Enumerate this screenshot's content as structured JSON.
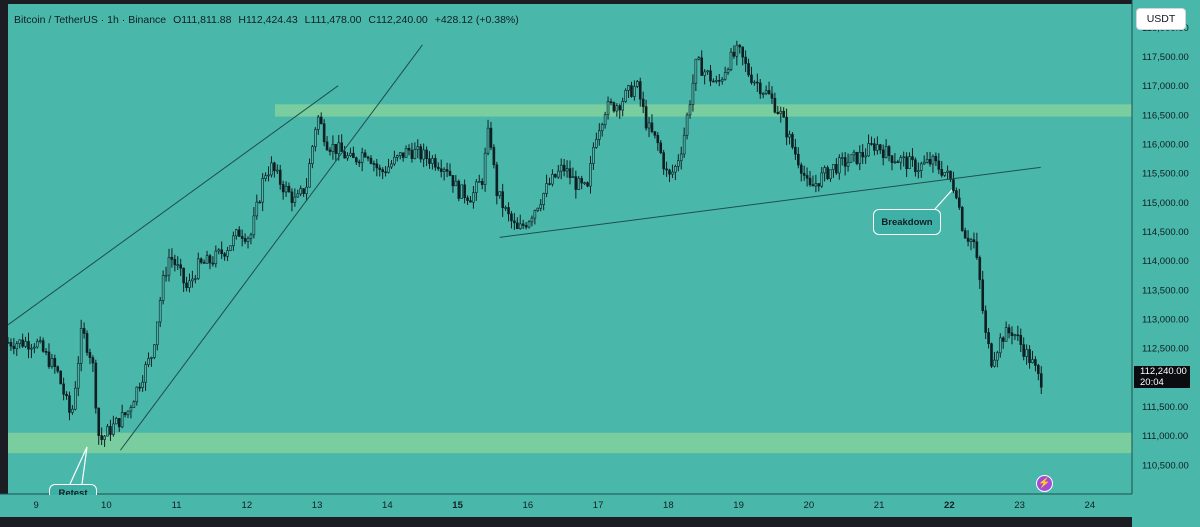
{
  "legend": {
    "symbol": "Bitcoin / TetherUS · 1h · Binance",
    "open": "O111,811.88",
    "high": "H112,424.43",
    "low": "L111,478.00",
    "close": "C112,240.00",
    "change": "+428.12 (+0.38%)"
  },
  "currency_button": "USDT",
  "last_price": "112,240.00",
  "countdown": "20:04",
  "annotations": {
    "breakdown": "Breakdown",
    "retest": "Retest"
  },
  "icons": {
    "lightning": "lightning-icon"
  },
  "colors": {
    "background": "#4ab7ab",
    "zone": "#7fcf9c",
    "candle": "#0d1f22",
    "frame": "#1b1d22"
  },
  "chart_data": {
    "type": "candlestick",
    "title": "",
    "ylim": [
      110000,
      118400
    ],
    "y_ticks": [
      "110,500.00",
      "111,000.00",
      "111,500.00",
      "112,000.00",
      "112,500.00",
      "113,000.00",
      "113,500.00",
      "114,000.00",
      "114,500.00",
      "115,000.00",
      "115,500.00",
      "116,000.00",
      "116,500.00",
      "117,000.00",
      "117,500.00",
      "118,000.00"
    ],
    "x_ticks": [
      "9",
      "10",
      "11",
      "12",
      "13",
      "14",
      "15",
      "16",
      "17",
      "18",
      "19",
      "20",
      "21",
      "22",
      "23",
      "24"
    ],
    "x_range_days": [
      8.6,
      24.6
    ],
    "grid": false,
    "zones": [
      {
        "name": "resistance",
        "from": 116470,
        "to": 116680,
        "x_start": 12.4,
        "x_end": 24.6
      },
      {
        "name": "support",
        "from": 110700,
        "to": 111050,
        "x_start": 8.6,
        "x_end": 24.6
      }
    ],
    "trendlines": [
      {
        "from": [
          8.6,
          112900
        ],
        "to": [
          13.3,
          117000
        ]
      },
      {
        "from": [
          10.2,
          110750
        ],
        "to": [
          14.5,
          117700
        ]
      },
      {
        "from": [
          15.6,
          114400
        ],
        "to": [
          23.3,
          115600
        ]
      }
    ],
    "price_path": [
      [
        9.0,
        112600
      ],
      [
        9.3,
        112100
      ],
      [
        9.5,
        111300
      ],
      [
        9.65,
        112800
      ],
      [
        9.8,
        112300
      ],
      [
        9.9,
        110900
      ],
      [
        10.05,
        111100
      ],
      [
        10.3,
        111400
      ],
      [
        10.5,
        112000
      ],
      [
        10.65,
        112400
      ],
      [
        10.8,
        113600
      ],
      [
        10.9,
        114100
      ],
      [
        11.0,
        113900
      ],
      [
        11.15,
        113500
      ],
      [
        11.3,
        113900
      ],
      [
        11.5,
        114000
      ],
      [
        11.7,
        114200
      ],
      [
        11.9,
        114500
      ],
      [
        12.05,
        114400
      ],
      [
        12.2,
        115200
      ],
      [
        12.25,
        115500
      ],
      [
        12.35,
        115600
      ],
      [
        12.5,
        115300
      ],
      [
        12.7,
        115000
      ],
      [
        12.85,
        115300
      ],
      [
        12.95,
        116100
      ],
      [
        13.0,
        116500
      ],
      [
        13.15,
        116000
      ],
      [
        13.3,
        115900
      ],
      [
        13.5,
        115700
      ],
      [
        13.7,
        115900
      ],
      [
        13.9,
        115500
      ],
      [
        14.1,
        115700
      ],
      [
        14.3,
        115900
      ],
      [
        14.5,
        115800
      ],
      [
        14.7,
        115700
      ],
      [
        14.85,
        115600
      ],
      [
        15.0,
        115200
      ],
      [
        15.2,
        115100
      ],
      [
        15.35,
        115400
      ],
      [
        15.45,
        116300
      ],
      [
        15.55,
        115200
      ],
      [
        15.7,
        114800
      ],
      [
        15.85,
        114500
      ],
      [
        16.0,
        114700
      ],
      [
        16.15,
        115000
      ],
      [
        16.3,
        115300
      ],
      [
        16.5,
        115600
      ],
      [
        16.7,
        115300
      ],
      [
        16.85,
        115200
      ],
      [
        16.95,
        116100
      ],
      [
        17.1,
        116600
      ],
      [
        17.3,
        116700
      ],
      [
        17.45,
        116900
      ],
      [
        17.55,
        117000
      ],
      [
        17.7,
        116300
      ],
      [
        17.85,
        116000
      ],
      [
        18.0,
        115400
      ],
      [
        18.1,
        115600
      ],
      [
        18.2,
        116000
      ],
      [
        18.3,
        116700
      ],
      [
        18.4,
        117400
      ],
      [
        18.55,
        117200
      ],
      [
        18.7,
        117000
      ],
      [
        18.85,
        117400
      ],
      [
        19.0,
        117600
      ],
      [
        19.15,
        117200
      ],
      [
        19.3,
        117000
      ],
      [
        19.45,
        116800
      ],
      [
        19.6,
        116500
      ],
      [
        19.75,
        116000
      ],
      [
        19.9,
        115600
      ],
      [
        20.0,
        115200
      ],
      [
        20.15,
        115400
      ],
      [
        20.35,
        115600
      ],
      [
        20.55,
        115700
      ],
      [
        20.75,
        115800
      ],
      [
        20.95,
        116000
      ],
      [
        21.15,
        115800
      ],
      [
        21.35,
        115700
      ],
      [
        21.55,
        115600
      ],
      [
        21.75,
        115700
      ],
      [
        21.95,
        115500
      ],
      [
        22.1,
        115200
      ],
      [
        22.2,
        114500
      ],
      [
        22.35,
        114300
      ],
      [
        22.45,
        113500
      ],
      [
        22.5,
        112800
      ],
      [
        22.6,
        112300
      ],
      [
        22.75,
        112700
      ],
      [
        22.9,
        112800
      ],
      [
        23.05,
        112500
      ],
      [
        23.2,
        112200
      ],
      [
        23.3,
        111900
      ],
      [
        23.35,
        112240
      ]
    ]
  }
}
